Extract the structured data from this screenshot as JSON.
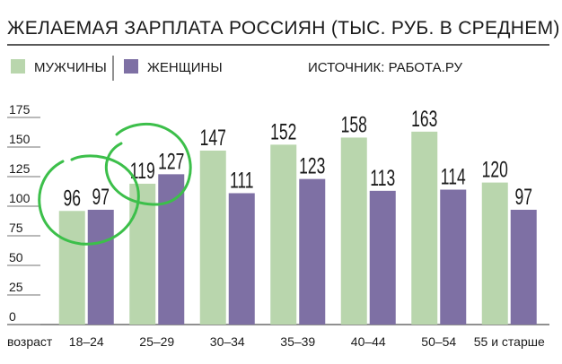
{
  "chart_data": {
    "type": "bar",
    "title": "ЖЕЛАЕМАЯ ЗАРПЛАТА РОССИЯН (ТЫС. РУБ. В СРЕДНЕМ)",
    "source": "ИСТОЧНИК: РАБОТА.РУ",
    "x_label": "возраст",
    "categories": [
      "18–24",
      "25–29",
      "30–34",
      "35–39",
      "40–44",
      "50–54",
      "55 и старше"
    ],
    "series": [
      {
        "name": "МУЖЧИНЫ",
        "color": "#b9d6ad",
        "values": [
          96,
          119,
          147,
          152,
          158,
          163,
          120
        ]
      },
      {
        "name": "ЖЕНЩИНЫ",
        "color": "#7e70a4",
        "values": [
          97,
          127,
          111,
          123,
          113,
          114,
          97
        ]
      }
    ],
    "ylim": [
      0,
      175
    ],
    "yticks": [
      0,
      25,
      50,
      75,
      100,
      125,
      150,
      175
    ]
  }
}
